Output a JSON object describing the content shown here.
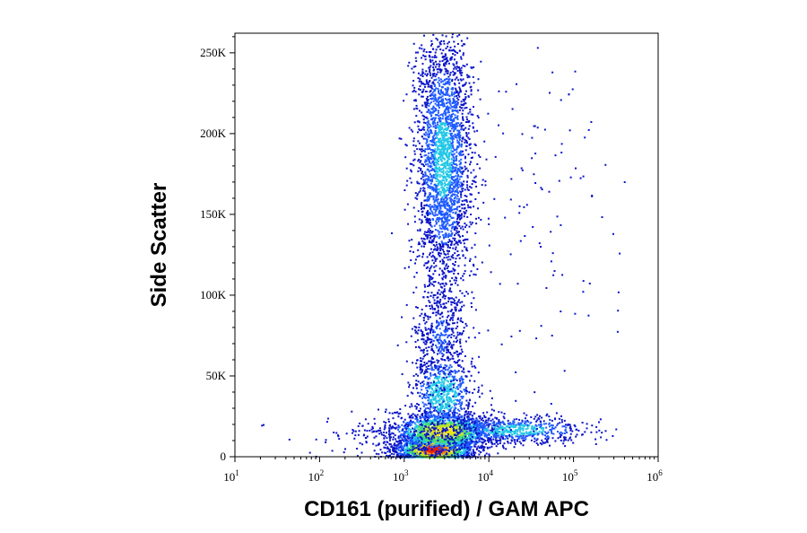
{
  "chart_data": {
    "type": "scatter",
    "plot_style": "flow-cytometry density dot plot",
    "xlabel": "CD161 (purified) / GAM APC",
    "ylabel": "Side Scatter",
    "x_scale": "log",
    "xlim": [
      10,
      1000000
    ],
    "ylim": [
      0,
      262144
    ],
    "x_ticks": [
      {
        "base": "10",
        "exp": "1",
        "value": 10
      },
      {
        "base": "10",
        "exp": "2",
        "value": 100
      },
      {
        "base": "10",
        "exp": "3",
        "value": 1000
      },
      {
        "base": "10",
        "exp": "4",
        "value": 10000
      },
      {
        "base": "10",
        "exp": "5",
        "value": 100000
      },
      {
        "base": "10",
        "exp": "6",
        "value": 1000000
      }
    ],
    "y_ticks": [
      {
        "label": "0",
        "value": 0
      },
      {
        "label": "50K",
        "value": 50000
      },
      {
        "label": "100K",
        "value": 100000
      },
      {
        "label": "150K",
        "value": 150000
      },
      {
        "label": "200K",
        "value": 200000
      },
      {
        "label": "250K",
        "value": 250000
      }
    ],
    "density_colors": [
      "#0a14c8",
      "#1e5aff",
      "#23c8e6",
      "#3cdc78",
      "#b4e628",
      "#f0e614",
      "#ff8c0a",
      "#e61e0a"
    ],
    "populations": [
      {
        "x_log_center": 3.35,
        "x_log_spread": 0.22,
        "y_center": 5000,
        "y_spread": 4500,
        "points": 1800,
        "peak_density": 1.0
      },
      {
        "x_log_center": 3.45,
        "x_log_spread": 0.3,
        "y_center": 16000,
        "y_spread": 6000,
        "points": 1400,
        "peak_density": 0.7
      },
      {
        "x_log_center": 4.3,
        "x_log_spread": 0.45,
        "y_center": 17000,
        "y_spread": 4000,
        "points": 650,
        "peak_density": 0.35
      },
      {
        "x_log_center": 3.45,
        "x_log_spread": 0.18,
        "y_center": 40000,
        "y_spread": 12000,
        "points": 700,
        "peak_density": 0.4
      },
      {
        "x_log_center": 3.42,
        "x_log_spread": 0.16,
        "y_center": 75000,
        "y_spread": 18000,
        "points": 450,
        "peak_density": 0.15
      },
      {
        "x_log_center": 3.45,
        "x_log_spread": 0.17,
        "y_center": 185000,
        "y_spread": 40000,
        "points": 2600,
        "peak_density": 0.3
      },
      {
        "x_log_center": 3.1,
        "x_log_spread": 0.6,
        "y_center": 12000,
        "y_spread": 9000,
        "points": 250,
        "peak_density": 0.05
      },
      {
        "x_log_center": 4.6,
        "x_log_spread": 0.5,
        "y_center": 160000,
        "y_spread": 60000,
        "points": 120,
        "peak_density": 0.03
      }
    ]
  }
}
